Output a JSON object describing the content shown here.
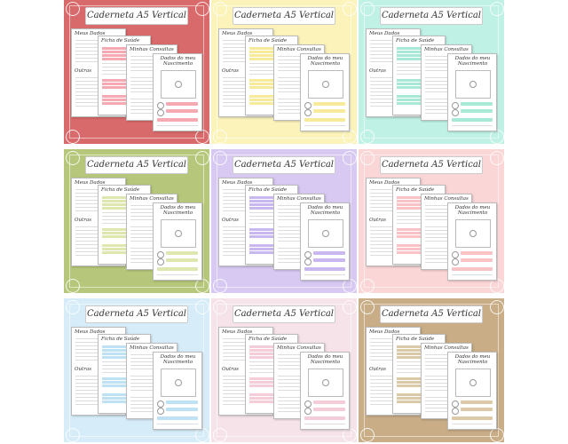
{
  "page_labels": {
    "title": "Caderneta A5 Vertical",
    "page1": "Meus Dados",
    "page2": "Ficha de Saúde",
    "page3": "Minhas Consultas",
    "page4": "Dados do meu Nascimento",
    "page5": "Outras"
  },
  "variants": [
    {
      "bg": "#d96a6c",
      "accent": "#f4a9b3"
    },
    {
      "bg": "#fbf3b9",
      "accent": "#f7ea9a"
    },
    {
      "bg": "#bff1e5",
      "accent": "#a8e8d6"
    },
    {
      "bg": "#b6c77b",
      "accent": "#dfe6b0"
    },
    {
      "bg": "#d7c9f2",
      "accent": "#c9b7ef"
    },
    {
      "bg": "#fbd6d7",
      "accent": "#f8c2c6"
    },
    {
      "bg": "#d7ecf9",
      "accent": "#bfe1f4"
    },
    {
      "bg": "#f6e3ea",
      "accent": "#f4cdd9"
    },
    {
      "bg": "#c8ad86",
      "accent": "#dcc9a8"
    }
  ]
}
